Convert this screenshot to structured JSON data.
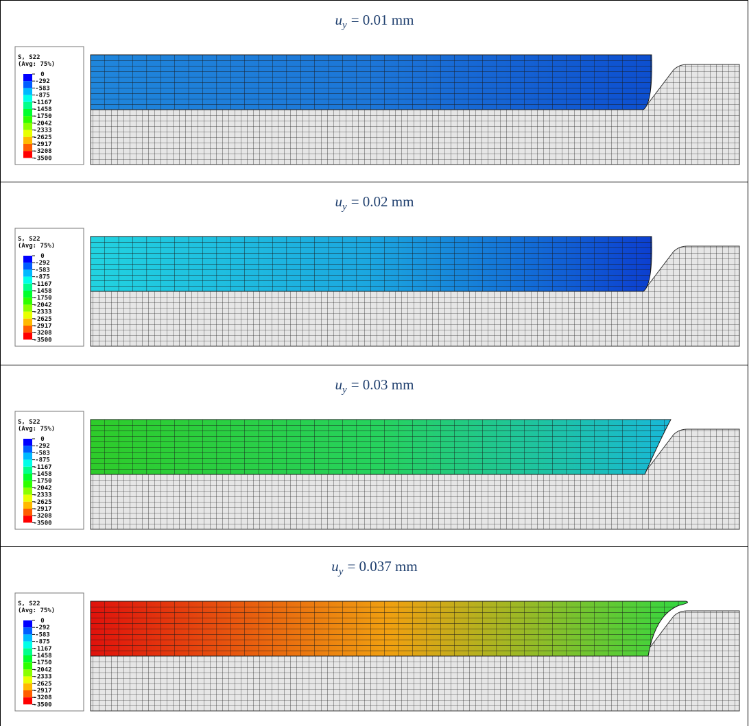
{
  "panels": [
    {
      "title": {
        "symbol": "u",
        "subscript": "y",
        "text": "= 0.01 mm"
      }
    },
    {
      "title": {
        "symbol": "u",
        "subscript": "y",
        "text": "= 0.02 mm"
      }
    },
    {
      "title": {
        "symbol": "u",
        "subscript": "y",
        "text": "= 0.03 mm"
      }
    },
    {
      "title": {
        "symbol": "u",
        "subscript": "y",
        "text": "= 0.037 mm"
      }
    }
  ],
  "legend": {
    "title": "S, S22",
    "subtitle": "(Avg: 75%)",
    "labels": [
      "0",
      "-292",
      "-583",
      "-875",
      "-1167",
      "-1458",
      "-1750",
      "-2042",
      "-2333",
      "-2625",
      "-2917",
      "-3208",
      "-3500"
    ]
  }
}
